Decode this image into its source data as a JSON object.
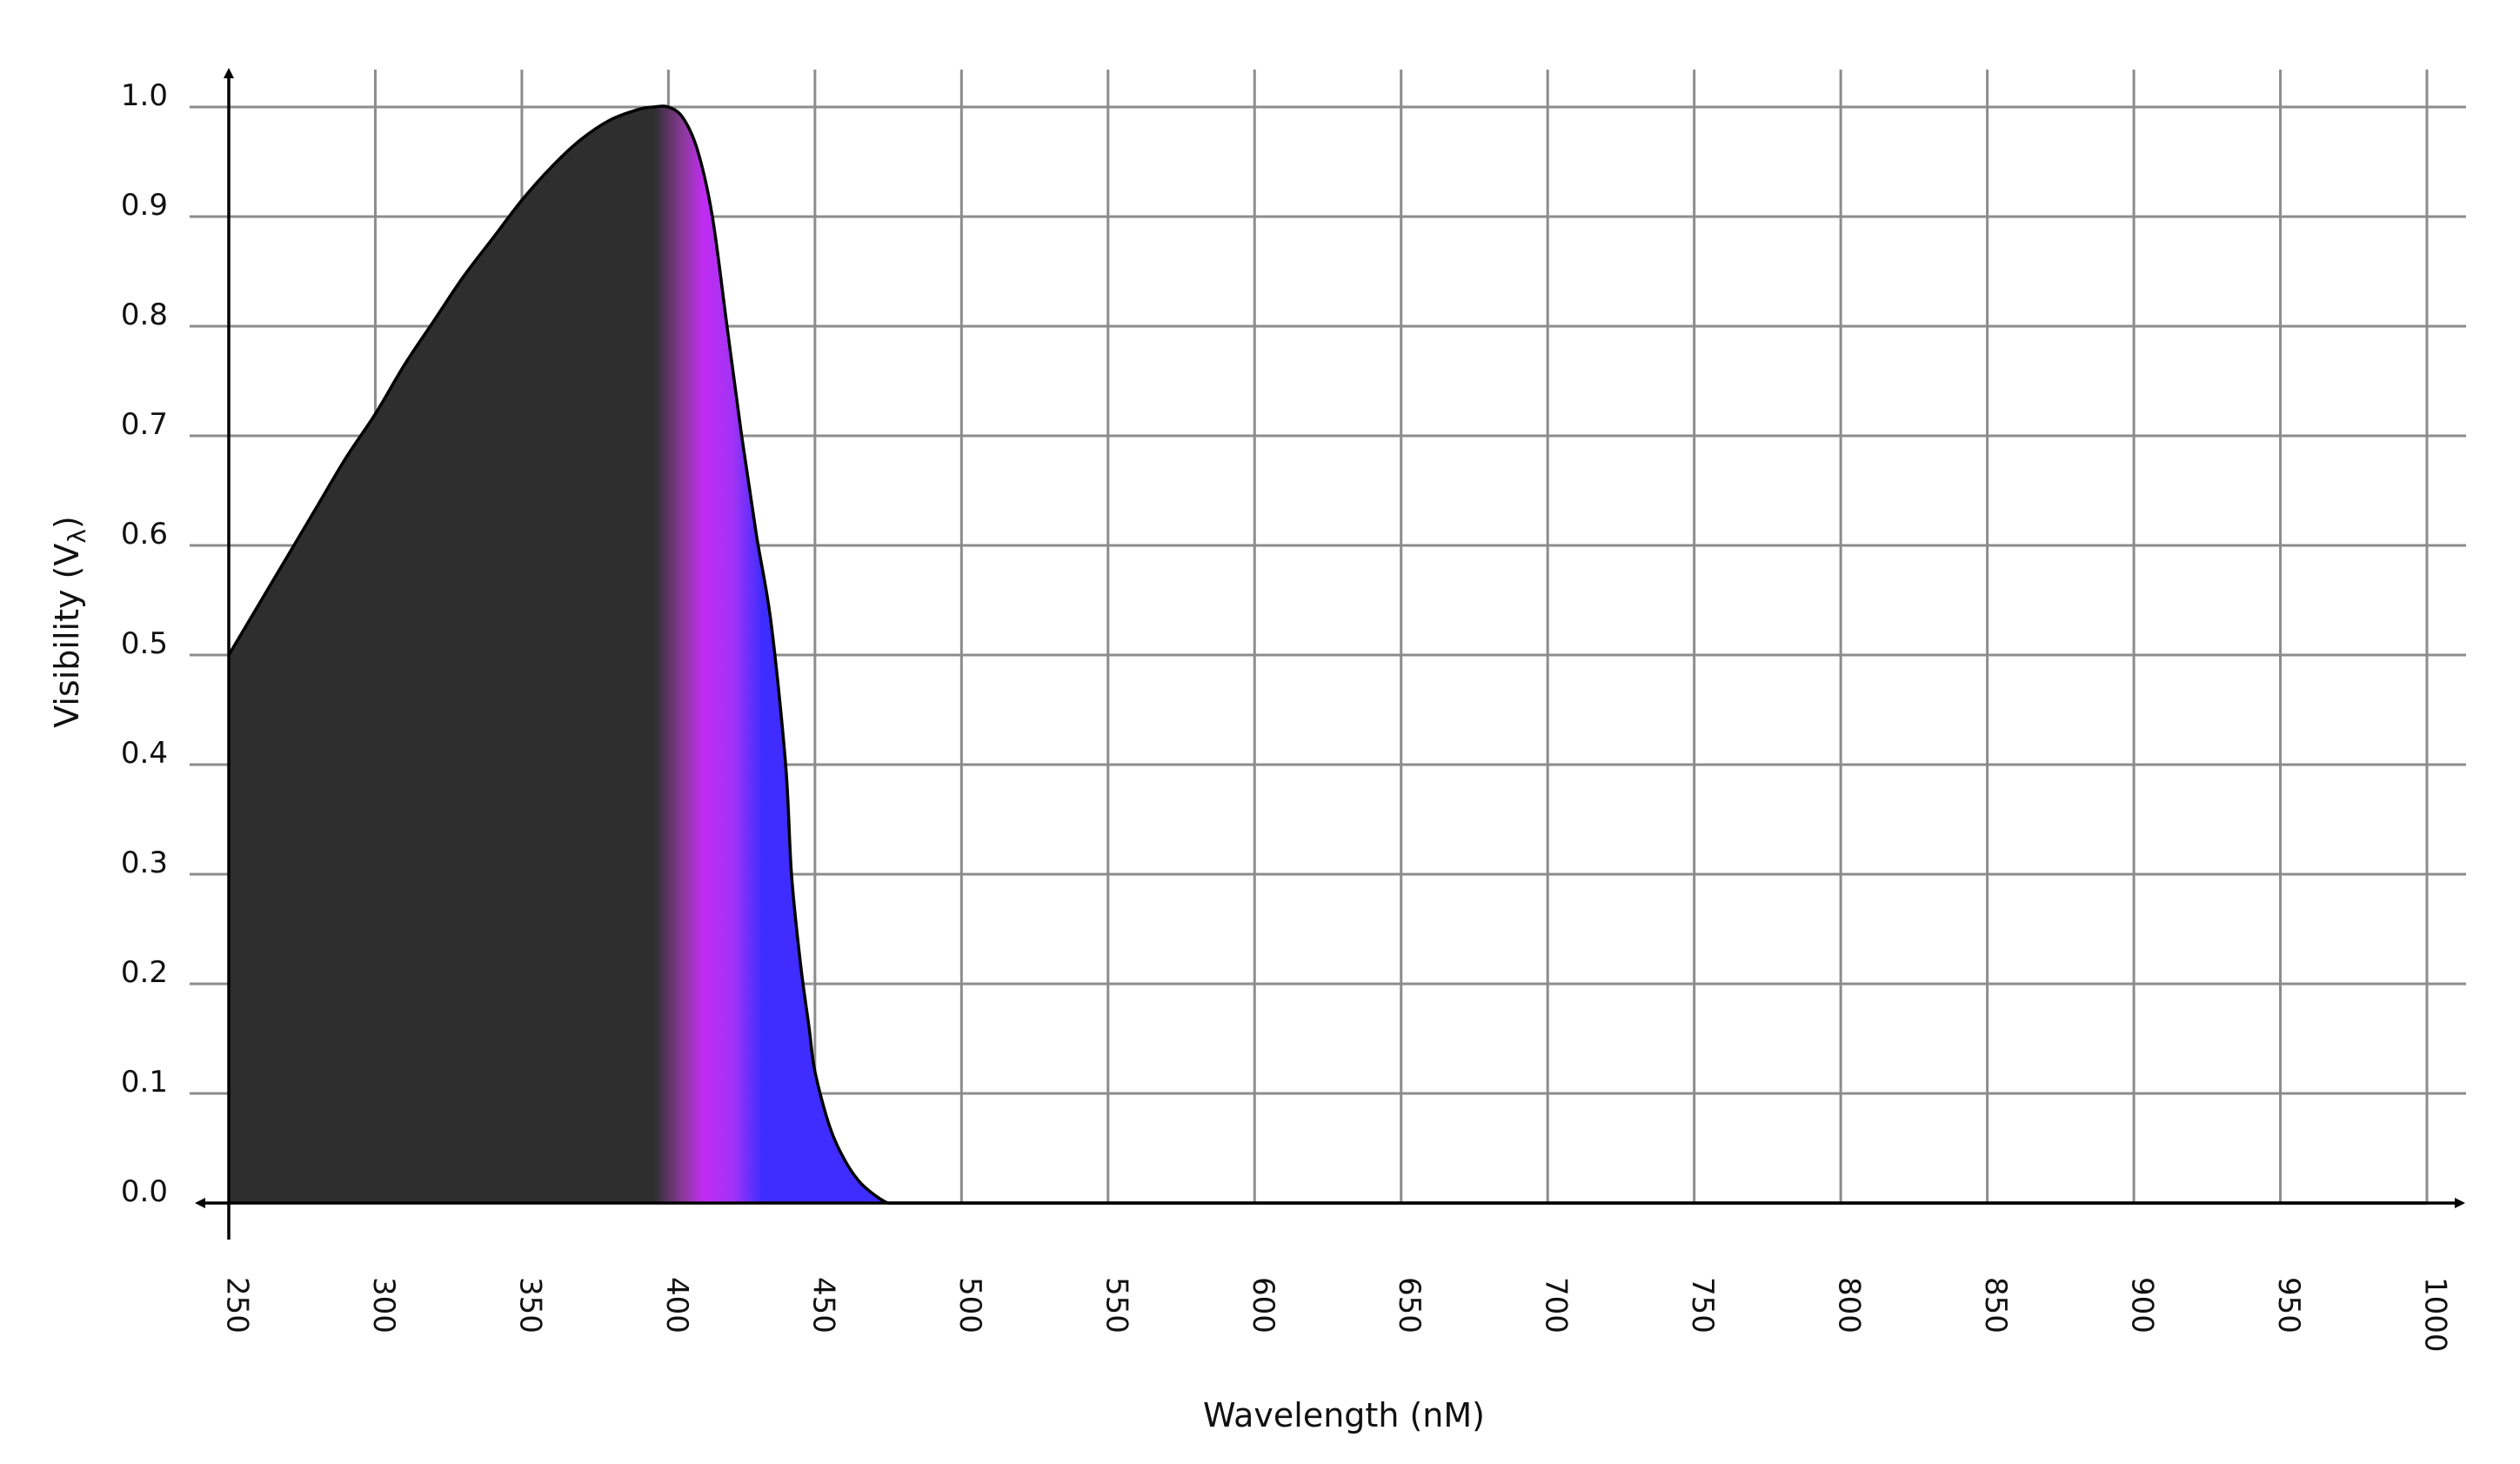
{
  "chart_data": {
    "type": "area",
    "xlabel": "Wavelength (nM)",
    "ylabel": "Visibility (V",
    "ylabel_subscript": "λ",
    "ylabel_close": ")",
    "xlim": [
      250,
      1000
    ],
    "ylim": [
      0,
      1.0
    ],
    "x_ticks": [
      "250",
      "300",
      "350",
      "400",
      "450",
      "500",
      "550",
      "600",
      "650",
      "700",
      "750",
      "800",
      "850",
      "900",
      "950",
      "1000"
    ],
    "y_ticks": [
      "0.0",
      "0.1",
      "0.2",
      "0.3",
      "0.4",
      "0.5",
      "0.6",
      "0.7",
      "0.8",
      "0.9",
      "1.0"
    ],
    "grid": true,
    "series": [
      {
        "x": [
          250,
          260,
          270,
          280,
          290,
          300,
          310,
          320,
          330,
          340,
          350,
          360,
          370,
          380,
          390,
          395,
          400,
          405,
          410,
          415,
          420,
          425,
          430,
          435,
          440,
          442,
          445,
          448,
          450,
          455,
          460,
          465,
          470,
          475,
          480,
          500,
          550,
          600,
          700,
          800,
          900,
          1000
        ],
        "y": [
          0.5,
          0.545,
          0.59,
          0.635,
          0.68,
          0.72,
          0.765,
          0.805,
          0.845,
          0.88,
          0.915,
          0.945,
          0.97,
          0.988,
          0.998,
          1.0,
          1.0,
          0.99,
          0.96,
          0.9,
          0.8,
          0.7,
          0.61,
          0.53,
          0.4,
          0.3,
          0.22,
          0.16,
          0.12,
          0.07,
          0.04,
          0.02,
          0.008,
          0.0,
          0.0,
          0.0,
          0.0,
          0.0,
          0.0,
          0.0,
          0.0,
          0.0
        ]
      }
    ],
    "fill_gradient": [
      {
        "x": 250,
        "color": "#2e2e2e"
      },
      {
        "x": 395,
        "color": "#2e2e2e"
      },
      {
        "x": 405,
        "color": "#8a3a9a"
      },
      {
        "x": 412,
        "color": "#c12cf2"
      },
      {
        "x": 422,
        "color": "#a233f5"
      },
      {
        "x": 432,
        "color": "#3f2dff"
      },
      {
        "x": 475,
        "color": "#3f2dff"
      }
    ]
  }
}
